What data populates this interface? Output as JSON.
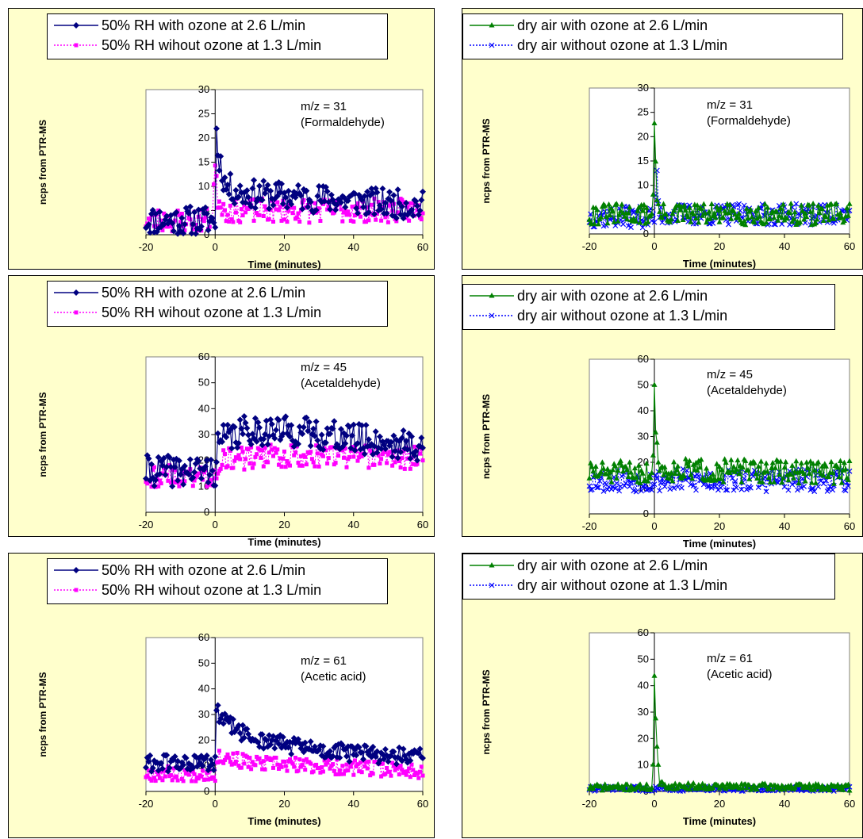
{
  "chart_data": [
    {
      "type": "line",
      "annotation": [
        "m/z = 31",
        "(Formaldehyde)"
      ],
      "xlabel": "Time (minutes)",
      "ylabel": "ncps from PTR-MS",
      "xlim": [
        -20,
        60
      ],
      "ylim": [
        0,
        30
      ],
      "xticks": [
        -20,
        0,
        20,
        40,
        60
      ],
      "yticks": [
        0,
        5,
        10,
        15,
        20,
        25,
        30
      ],
      "legend_placement": "top",
      "series": [
        {
          "name": "50% RH with ozone at 2.6 L/min",
          "color": "#000080",
          "marker": "diamond",
          "dash": "solid",
          "profile": {
            "base": [
              [
                -20,
                3
              ],
              [
                0,
                3
              ],
              [
                0.2,
                25.5
              ],
              [
                0.6,
                17
              ],
              [
                1.2,
                16
              ],
              [
                3,
                10
              ],
              [
                8,
                8.5
              ],
              [
                20,
                8
              ],
              [
                40,
                7
              ],
              [
                60,
                6
              ]
            ],
            "noise": 3.0,
            "seed": 11
          }
        },
        {
          "name": "50% RH wihout ozone at 1.3 L/min",
          "color": "#ff00ff",
          "marker": "square",
          "dash": "dotted",
          "profile": {
            "base": [
              [
                -20,
                3
              ],
              [
                -1,
                3
              ],
              [
                0,
                14
              ],
              [
                0.6,
                8
              ],
              [
                3,
                5
              ],
              [
                60,
                5
              ]
            ],
            "noise": 2.5,
            "seed": 23
          }
        }
      ]
    },
    {
      "type": "line",
      "annotation": [
        "m/z = 31",
        "(Formaldehyde)"
      ],
      "xlabel": "Time (minutes)",
      "ylabel": "ncps from PTR-MS",
      "xlim": [
        -20,
        60
      ],
      "ylim": [
        0,
        30
      ],
      "xticks": [
        -20,
        0,
        20,
        40,
        60
      ],
      "yticks": [
        0,
        5,
        10,
        15,
        20,
        25,
        30
      ],
      "legend_placement": "top",
      "series": [
        {
          "name": "dry air with ozone at 2.6 L/min",
          "color": "#008000",
          "marker": "triangle",
          "dash": "solid",
          "profile": {
            "base": [
              [
                -20,
                4
              ],
              [
                -0.5,
                4
              ],
              [
                0,
                24.5
              ],
              [
                0.6,
                8
              ],
              [
                1.5,
                4
              ],
              [
                60,
                4
              ]
            ],
            "noise": 2.2,
            "seed": 31
          }
        },
        {
          "name": "dry air without ozone at 1.3 L/min",
          "color": "#0000ff",
          "marker": "x",
          "dash": "dotted",
          "profile": {
            "base": [
              [
                -20,
                3.5
              ],
              [
                0.3,
                3.5
              ],
              [
                0.7,
                13
              ],
              [
                1.5,
                4
              ],
              [
                60,
                4
              ]
            ],
            "noise": 2.2,
            "seed": 37
          }
        }
      ]
    },
    {
      "type": "line",
      "annotation": [
        "m/z = 45",
        "(Acetaldehyde)"
      ],
      "xlabel": "Time (minutes)",
      "ylabel": "ncps from PTR-MS",
      "xlim": [
        -20,
        60
      ],
      "ylim": [
        0,
        60
      ],
      "xticks": [
        -20,
        0,
        20,
        40,
        60
      ],
      "yticks": [
        0,
        10,
        20,
        30,
        40,
        50,
        60
      ],
      "legend_placement": "top",
      "series": [
        {
          "name": "50% RH with ozone at 2.6 L/min",
          "color": "#000080",
          "marker": "diamond",
          "dash": "solid",
          "profile": {
            "base": [
              [
                -20,
                16
              ],
              [
                0,
                16
              ],
              [
                1,
                27
              ],
              [
                10,
                32
              ],
              [
                25,
                31
              ],
              [
                60,
                25
              ]
            ],
            "noise": 6.0,
            "seed": 41
          }
        },
        {
          "name": "50% RH wihout ozone at 1.3 L/min",
          "color": "#ff00ff",
          "marker": "square",
          "dash": "dotted",
          "profile": {
            "base": [
              [
                -20,
                14
              ],
              [
                0,
                14
              ],
              [
                1,
                20
              ],
              [
                20,
                22
              ],
              [
                60,
                21
              ]
            ],
            "noise": 4.5,
            "seed": 43
          }
        }
      ]
    },
    {
      "type": "line",
      "annotation": [
        "m/z = 45",
        "(Acetaldehyde)"
      ],
      "xlabel": "Time (minutes)",
      "ylabel": "ncps from PTR-MS",
      "xlim": [
        -20,
        60
      ],
      "ylim": [
        0,
        60
      ],
      "xticks": [
        -20,
        0,
        20,
        40,
        60
      ],
      "yticks": [
        0,
        10,
        20,
        30,
        40,
        50,
        60
      ],
      "legend_placement": "top",
      "series": [
        {
          "name": "dry air with ozone at 2.6 L/min",
          "color": "#008000",
          "marker": "triangle",
          "dash": "solid",
          "profile": {
            "base": [
              [
                -20,
                16
              ],
              [
                -0.5,
                16
              ],
              [
                0,
                46
              ],
              [
                0.6,
                31
              ],
              [
                1.5,
                17
              ],
              [
                60,
                16
              ]
            ],
            "noise": 4.5,
            "seed": 51
          }
        },
        {
          "name": "dry air without ozone at 1.3 L/min",
          "color": "#0000ff",
          "marker": "x",
          "dash": "dotted",
          "profile": {
            "base": [
              [
                -20,
                13
              ],
              [
                60,
                13
              ]
            ],
            "noise": 4.5,
            "seed": 53
          }
        }
      ]
    },
    {
      "type": "line",
      "annotation": [
        "m/z = 61",
        "(Acetic acid)"
      ],
      "xlabel": "Time (minutes)",
      "ylabel": "ncps from PTR-MS",
      "xlim": [
        -20,
        60
      ],
      "ylim": [
        0,
        60
      ],
      "xticks": [
        -20,
        0,
        20,
        40,
        60
      ],
      "yticks": [
        0,
        10,
        20,
        30,
        40,
        50,
        60
      ],
      "legend_placement": "top",
      "series": [
        {
          "name": "50% RH with ozone at 2.6 L/min",
          "color": "#000080",
          "marker": "diamond",
          "dash": "solid",
          "profile": {
            "base": [
              [
                -20,
                11
              ],
              [
                0,
                11
              ],
              [
                0.3,
                31
              ],
              [
                3,
                27
              ],
              [
                10,
                21
              ],
              [
                30,
                16
              ],
              [
                60,
                13
              ]
            ],
            "noise": 3.5,
            "seed": 61
          }
        },
        {
          "name": "50% RH wihout ozone at 1.3 L/min",
          "color": "#ff00ff",
          "marker": "square",
          "dash": "dotted",
          "profile": {
            "base": [
              [
                -20,
                7
              ],
              [
                0,
                7
              ],
              [
                1,
                14
              ],
              [
                10,
                11
              ],
              [
                60,
                8
              ]
            ],
            "noise": 3.0,
            "seed": 67
          }
        }
      ]
    },
    {
      "type": "line",
      "annotation": [
        "m/z = 61",
        "(Acetic acid)"
      ],
      "xlabel": "Time (minutes)",
      "ylabel": "ncps from PTR-MS",
      "xlim": [
        -20,
        60
      ],
      "ylim": [
        0,
        60
      ],
      "xticks": [
        -20,
        0,
        20,
        40,
        60
      ],
      "yticks": [
        0,
        10,
        20,
        30,
        40,
        50,
        60
      ],
      "legend_placement": "top",
      "series": [
        {
          "name": "dry air with ozone at 2.6 L/min",
          "color": "#008000",
          "marker": "triangle",
          "dash": "solid",
          "profile": {
            "base": [
              [
                -20,
                1.5
              ],
              [
                -0.5,
                1.5
              ],
              [
                0,
                43
              ],
              [
                0.6,
                21
              ],
              [
                1.5,
                3
              ],
              [
                3,
                2
              ],
              [
                60,
                1.5
              ]
            ],
            "noise": 1.2,
            "seed": 71
          }
        },
        {
          "name": "dry air without ozone at 1.3 L/min",
          "color": "#0000ff",
          "marker": "x",
          "dash": "dotted",
          "profile": {
            "base": [
              [
                -20,
                1
              ],
              [
                60,
                1
              ]
            ],
            "noise": 0.9,
            "seed": 73
          }
        }
      ]
    }
  ]
}
